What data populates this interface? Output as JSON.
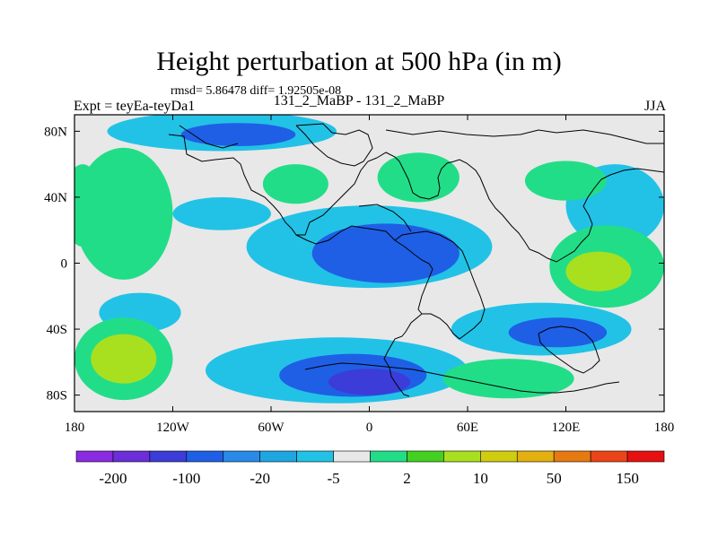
{
  "title": "Height perturbation at 500 hPa (in m)",
  "stats": "rmsd= 5.86478 diff= 1.92505e-08",
  "experiment": "Expt = teyEa-teyDa1",
  "cases": "131_2_MaBP - 131_2_MaBP",
  "season": "JJA",
  "chart_data": {
    "type": "heatmap",
    "title": "Height perturbation at 500 hPa (in m)",
    "projection": "cylindrical equidistant",
    "x_axis": {
      "range": [
        -180,
        180
      ],
      "ticks": [
        {
          "value": -180,
          "label": "180"
        },
        {
          "value": -120,
          "label": "120W"
        },
        {
          "value": -60,
          "label": "60W"
        },
        {
          "value": 0,
          "label": "0"
        },
        {
          "value": 60,
          "label": "60E"
        },
        {
          "value": 120,
          "label": "120E"
        },
        {
          "value": 180,
          "label": "180"
        }
      ]
    },
    "y_axis": {
      "range": [
        -90,
        90
      ],
      "ticks": [
        {
          "value": 80,
          "label": "80N"
        },
        {
          "value": 40,
          "label": "40N"
        },
        {
          "value": 0,
          "label": "0"
        },
        {
          "value": -40,
          "label": "40S"
        },
        {
          "value": -80,
          "label": "80S"
        }
      ]
    },
    "colorbar": {
      "colors": [
        "#8a2be2",
        "#6a2fd8",
        "#3c3cd8",
        "#1f5fe6",
        "#2a8ae8",
        "#1fa6e0",
        "#22c2e6",
        "#e8e8e8",
        "#22dd88",
        "#44d020",
        "#a8e020",
        "#d0cc10",
        "#e4b010",
        "#e67a10",
        "#ea4418",
        "#e61010"
      ],
      "labels": [
        {
          "index": 1,
          "text": "-200"
        },
        {
          "index": 3,
          "text": "-100"
        },
        {
          "index": 5,
          "text": "-20"
        },
        {
          "index": 7,
          "text": "-5"
        },
        {
          "index": 9,
          "text": "2"
        },
        {
          "index": 11,
          "text": "10"
        },
        {
          "index": 13,
          "text": "50"
        },
        {
          "index": 15,
          "text": "150"
        }
      ]
    },
    "field_regions": [
      {
        "level": -5,
        "lon": 0,
        "lat": 10,
        "rx": 75,
        "ry": 25
      },
      {
        "level": -20,
        "lon": 10,
        "lat": 6,
        "rx": 45,
        "ry": 18
      },
      {
        "level": -5,
        "lon": -20,
        "lat": -65,
        "rx": 80,
        "ry": 20
      },
      {
        "level": -20,
        "lon": -10,
        "lat": -68,
        "rx": 45,
        "ry": 13
      },
      {
        "level": -100,
        "lon": 0,
        "lat": -72,
        "rx": 25,
        "ry": 8
      },
      {
        "level": -5,
        "lon": 105,
        "lat": -40,
        "rx": 55,
        "ry": 16
      },
      {
        "level": -20,
        "lon": 115,
        "lat": -42,
        "rx": 30,
        "ry": 9
      },
      {
        "level": -5,
        "lon": -90,
        "lat": 80,
        "rx": 70,
        "ry": 12
      },
      {
        "level": -20,
        "lon": -80,
        "lat": 78,
        "rx": 35,
        "ry": 7
      },
      {
        "level": -5,
        "lon": 150,
        "lat": 35,
        "rx": 30,
        "ry": 25
      },
      {
        "level": -5,
        "lon": -140,
        "lat": -30,
        "rx": 25,
        "ry": 12
      },
      {
        "level": -5,
        "lon": -90,
        "lat": 30,
        "rx": 30,
        "ry": 10
      },
      {
        "level": 2,
        "lon": -150,
        "lat": 30,
        "rx": 30,
        "ry": 40
      },
      {
        "level": 2,
        "lon": -150,
        "lat": -58,
        "rx": 30,
        "ry": 25
      },
      {
        "level": 10,
        "lon": -150,
        "lat": -58,
        "rx": 20,
        "ry": 15
      },
      {
        "level": 2,
        "lon": 145,
        "lat": -2,
        "rx": 35,
        "ry": 25
      },
      {
        "level": 10,
        "lon": 140,
        "lat": -5,
        "rx": 20,
        "ry": 12
      },
      {
        "level": 2,
        "lon": 120,
        "lat": 50,
        "rx": 25,
        "ry": 12
      },
      {
        "level": 2,
        "lon": -45,
        "lat": 48,
        "rx": 20,
        "ry": 12
      },
      {
        "level": 2,
        "lon": 30,
        "lat": 52,
        "rx": 25,
        "ry": 15
      },
      {
        "level": 2,
        "lon": 85,
        "lat": -70,
        "rx": 40,
        "ry": 12
      },
      {
        "level": 2,
        "lon": -175,
        "lat": 35,
        "rx": 12,
        "ry": 25
      }
    ]
  }
}
